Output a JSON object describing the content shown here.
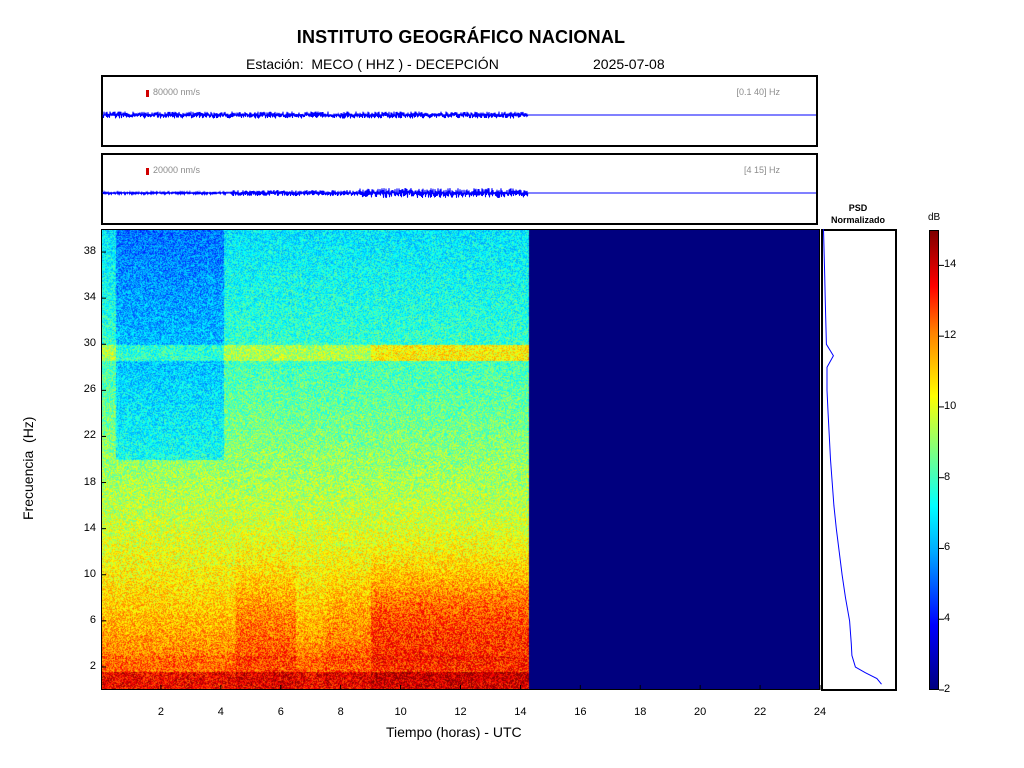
{
  "chart_data": {
    "type": "heatmap",
    "title": "INSTITUTO GEOGRÁFICO NACIONAL",
    "subtitle_station": "Estación:  MECO ( HHZ ) - DECEPCIÓN",
    "subtitle_date": "2025-07-08",
    "xlabel": "Tiempo (horas) - UTC",
    "ylabel": "Frecuencia  (Hz)",
    "xlim": [
      0,
      24
    ],
    "ylim": [
      0,
      40
    ],
    "x_ticks": [
      2,
      4,
      6,
      8,
      10,
      12,
      14,
      16,
      18,
      20,
      22,
      24
    ],
    "y_ticks": [
      2,
      6,
      10,
      14,
      18,
      22,
      26,
      30,
      34,
      38
    ],
    "data_end_hour": 14.3,
    "traces": [
      {
        "scale_label": "80000 nm/s",
        "band_label": "[0.1 40] Hz"
      },
      {
        "scale_label": "20000 nm/s",
        "band_label": "[4 15] Hz"
      }
    ],
    "psd": {
      "title_line1": "PSD",
      "title_line2": "Normalizado",
      "freq": [
        0.5,
        1,
        1.5,
        2,
        3,
        4,
        6,
        8,
        10,
        12,
        14,
        16,
        18,
        20,
        22,
        24,
        26,
        28,
        29,
        30,
        32,
        34,
        36,
        38,
        40
      ],
      "value": [
        1.0,
        0.92,
        0.72,
        0.55,
        0.49,
        0.48,
        0.45,
        0.38,
        0.32,
        0.27,
        0.22,
        0.18,
        0.15,
        0.12,
        0.1,
        0.08,
        0.06,
        0.06,
        0.17,
        0.05,
        0.04,
        0.03,
        0.02,
        0.01,
        0.0
      ]
    },
    "colorbar": {
      "label": "dB",
      "min": 2,
      "max": 15,
      "ticks": [
        2,
        4,
        6,
        8,
        10,
        12,
        14
      ]
    }
  }
}
